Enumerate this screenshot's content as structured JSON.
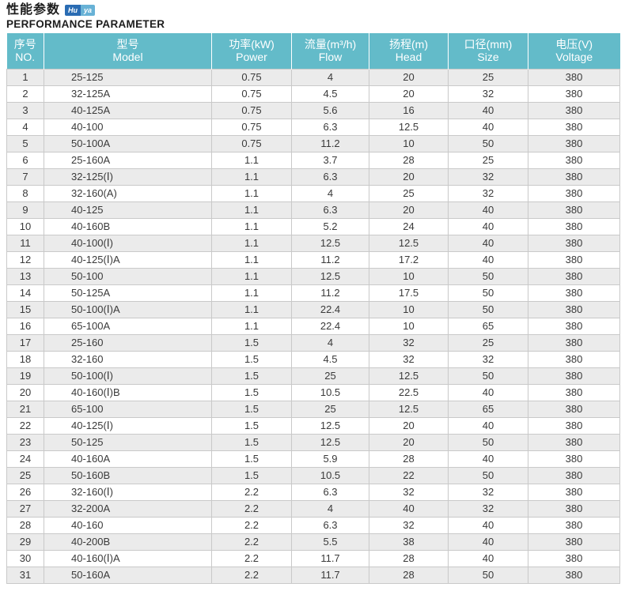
{
  "page": {
    "title_cn": "性能参数",
    "title_en": "PERFORMANCE PARAMETER",
    "logo": {
      "part1": "Hu",
      "part2": "ya"
    }
  },
  "colors": {
    "header_bg": "#63bbc9",
    "stripe_bg": "#ebebeb",
    "border": "#c9c9c9",
    "logo_dark": "#2a6cb3",
    "logo_light": "#68b2d6"
  },
  "table": {
    "columns": [
      {
        "key": "no",
        "cn": "序号",
        "en": "NO."
      },
      {
        "key": "model",
        "cn": "型号",
        "en": "Model"
      },
      {
        "key": "power",
        "cn": "功率(kW)",
        "en": "Power"
      },
      {
        "key": "flow",
        "cn": "流量(m³/h)",
        "en": "Flow"
      },
      {
        "key": "head",
        "cn": "扬程(m)",
        "en": "Head"
      },
      {
        "key": "size",
        "cn": "口径(mm)",
        "en": "Size"
      },
      {
        "key": "voltage",
        "cn": "电压(V)",
        "en": "Voltage"
      }
    ],
    "rows": [
      [
        "1",
        "25-125",
        "0.75",
        "4",
        "20",
        "25",
        "380"
      ],
      [
        "2",
        "32-125A",
        "0.75",
        "4.5",
        "20",
        "32",
        "380"
      ],
      [
        "3",
        "40-125A",
        "0.75",
        "5.6",
        "16",
        "40",
        "380"
      ],
      [
        "4",
        "40-100",
        "0.75",
        "6.3",
        "12.5",
        "40",
        "380"
      ],
      [
        "5",
        "50-100A",
        "0.75",
        "11.2",
        "10",
        "50",
        "380"
      ],
      [
        "6",
        "25-160A",
        "1.1",
        "3.7",
        "28",
        "25",
        "380"
      ],
      [
        "7",
        "32-125(Ⅰ)",
        "1.1",
        "6.3",
        "20",
        "32",
        "380"
      ],
      [
        "8",
        "32-160(A)",
        "1.1",
        "4",
        "25",
        "32",
        "380"
      ],
      [
        "9",
        "40-125",
        "1.1",
        "6.3",
        "20",
        "40",
        "380"
      ],
      [
        "10",
        "40-160B",
        "1.1",
        "5.2",
        "24",
        "40",
        "380"
      ],
      [
        "11",
        "40-100(Ⅰ)",
        "1.1",
        "12.5",
        "12.5",
        "40",
        "380"
      ],
      [
        "12",
        "40-125(Ⅰ)A",
        "1.1",
        "11.2",
        "17.2",
        "40",
        "380"
      ],
      [
        "13",
        "50-100",
        "1.1",
        "12.5",
        "10",
        "50",
        "380"
      ],
      [
        "14",
        "50-125A",
        "1.1",
        "11.2",
        "17.5",
        "50",
        "380"
      ],
      [
        "15",
        "50-100(Ⅰ)A",
        "1.1",
        "22.4",
        "10",
        "50",
        "380"
      ],
      [
        "16",
        "65-100A",
        "1.1",
        "22.4",
        "10",
        "65",
        "380"
      ],
      [
        "17",
        "25-160",
        "1.5",
        "4",
        "32",
        "25",
        "380"
      ],
      [
        "18",
        "32-160",
        "1.5",
        "4.5",
        "32",
        "32",
        "380"
      ],
      [
        "19",
        "50-100(Ⅰ)",
        "1.5",
        "25",
        "12.5",
        "50",
        "380"
      ],
      [
        "20",
        "40-160(Ⅰ)B",
        "1.5",
        "10.5",
        "22.5",
        "40",
        "380"
      ],
      [
        "21",
        "65-100",
        "1.5",
        "25",
        "12.5",
        "65",
        "380"
      ],
      [
        "22",
        "40-125(Ⅰ)",
        "1.5",
        "12.5",
        "20",
        "40",
        "380"
      ],
      [
        "23",
        "50-125",
        "1.5",
        "12.5",
        "20",
        "50",
        "380"
      ],
      [
        "24",
        "40-160A",
        "1.5",
        "5.9",
        "28",
        "40",
        "380"
      ],
      [
        "25",
        "50-160B",
        "1.5",
        "10.5",
        "22",
        "50",
        "380"
      ],
      [
        "26",
        "32-160(Ⅰ)",
        "2.2",
        "6.3",
        "32",
        "32",
        "380"
      ],
      [
        "27",
        "32-200A",
        "2.2",
        "4",
        "40",
        "32",
        "380"
      ],
      [
        "28",
        "40-160",
        "2.2",
        "6.3",
        "32",
        "40",
        "380"
      ],
      [
        "29",
        "40-200B",
        "2.2",
        "5.5",
        "38",
        "40",
        "380"
      ],
      [
        "30",
        "40-160(Ⅰ)A",
        "2.2",
        "11.7",
        "28",
        "40",
        "380"
      ],
      [
        "31",
        "50-160A",
        "2.2",
        "11.7",
        "28",
        "50",
        "380"
      ]
    ]
  }
}
